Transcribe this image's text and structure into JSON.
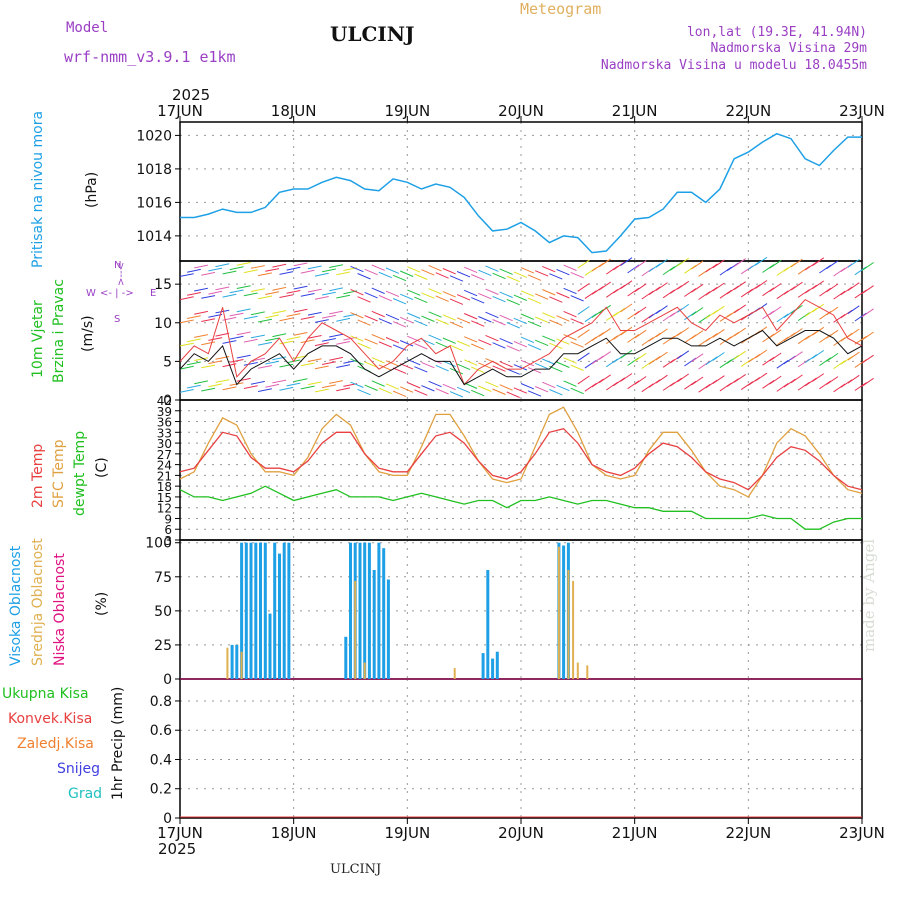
{
  "header": {
    "model_label": "Model",
    "model_name": "wrf-nmm_v3.9.1  e1km",
    "station": "ULCINJ",
    "meteogram": "Meteogram",
    "lonlat": "lon,lat (19.3E, 41.94N)",
    "elevation": "Nadmorska Visina 29m",
    "model_elevation": "Nadmorska Visina u modelu 18.0455m"
  },
  "footer": {
    "station": "ULCINJ",
    "made_by": "made by Angel"
  },
  "time_axis": {
    "year": "2025",
    "day_labels": [
      "17JUN",
      "18JUN",
      "19JUN",
      "20JUN",
      "21JUN",
      "22JUN",
      "23JUN"
    ]
  },
  "panels": {
    "pressure": {
      "title": "Pritisak na nivou mora",
      "unit": "(hPa)"
    },
    "wind": {
      "title1": "10m Vjetar",
      "title2": "Brzina i Pravac",
      "unit": "(m/s)",
      "compass_n": "N",
      "compass_s": "S",
      "compass_w": "W",
      "compass_e": "E",
      "compass_arrow_v": ">--<",
      "compass_arrow_h": "<- | ->"
    },
    "temperature": {
      "title1": "2m Temp",
      "title2": "SFC Temp",
      "title3": "dewpt Temp",
      "unit": "(C)"
    },
    "cloud": {
      "title1": "Visoka Oblacnost",
      "title2": "Srednja Oblacnost",
      "title3": "Niska Oblacnost",
      "unit": "(%)"
    },
    "precip": {
      "legend": [
        "Ukupna Kisa",
        "Konvek.Kisa",
        "Zaledj.Kisa",
        "Snijeg",
        "Grad"
      ],
      "unit": "1hr Precip (mm)"
    }
  },
  "colors": {
    "pressure_line": "#1ea0e6",
    "temp2m": "#e84040",
    "sfc_temp": "#e0a040",
    "dewpoint": "#20c020",
    "cloud_high": "#1ea0e6",
    "cloud_mid": "#e0b050",
    "cloud_low": "#e01080",
    "grid": "#999999",
    "purple": "#9a3fc4"
  },
  "chart_data": [
    {
      "type": "line",
      "name": "pressure",
      "ylim": [
        1012.5,
        1020.8
      ],
      "yticks": [
        1014,
        1016,
        1018,
        1020
      ],
      "x_hours": [
        0,
        3,
        6,
        9,
        12,
        15,
        18,
        21,
        24,
        27,
        30,
        33,
        36,
        39,
        42,
        45,
        48,
        51,
        54,
        57,
        60,
        63,
        66,
        69,
        72,
        75,
        78,
        81,
        84,
        87,
        90,
        93,
        96,
        99,
        102,
        105,
        108,
        111,
        114,
        117,
        120,
        123,
        126,
        129,
        132,
        135,
        138,
        141,
        144
      ],
      "series": [
        {
          "name": "",
          "values": [
            1015.1,
            1015.1,
            1015.3,
            1015.6,
            1015.4,
            1015.4,
            1015.7,
            1016.6,
            1016.8,
            1016.8,
            1017.2,
            1017.5,
            1017.3,
            1016.8,
            1016.7,
            1017.4,
            1017.2,
            1016.8,
            1017.1,
            1016.9,
            1016.3,
            1015.2,
            1014.3,
            1014.4,
            1014.8,
            1014.3,
            1013.6,
            1014.0,
            1013.9,
            1013.0,
            1013.1,
            1014.0,
            1015.0,
            1015.1,
            1015.6,
            1016.6,
            1016.6,
            1016.0,
            1016.8,
            1018.6,
            1019.0,
            1019.6,
            1020.1,
            1019.8,
            1018.6,
            1018.2,
            1019.1,
            1019.9,
            1019.9
          ]
        }
      ],
      "ylabel": "(hPa)"
    },
    {
      "type": "line",
      "name": "wind",
      "ylim": [
        0,
        18
      ],
      "yticks": [
        0,
        5,
        10,
        15
      ],
      "x_hours": [
        0,
        3,
        6,
        9,
        12,
        15,
        18,
        21,
        24,
        27,
        30,
        33,
        36,
        39,
        42,
        45,
        48,
        51,
        54,
        57,
        60,
        63,
        66,
        69,
        72,
        75,
        78,
        81,
        84,
        87,
        90,
        93,
        96,
        99,
        102,
        105,
        108,
        111,
        114,
        117,
        120,
        123,
        126,
        129,
        132,
        135,
        138,
        141,
        144
      ],
      "series": [
        {
          "name": "",
          "values": [
            4,
            6,
            5,
            7,
            2,
            4,
            5,
            6,
            4,
            6,
            7,
            7,
            6,
            4,
            3,
            4,
            5,
            6,
            5,
            5,
            2,
            3,
            4,
            3,
            3,
            4,
            4,
            6,
            6,
            7,
            8,
            6,
            6,
            7,
            8,
            8,
            7,
            7,
            8,
            7,
            8,
            9,
            7,
            8,
            9,
            9,
            8,
            6,
            7
          ]
        },
        {
          "name": "",
          "values": [
            5,
            7,
            6,
            12,
            3,
            5,
            6,
            8,
            5,
            8,
            10,
            9,
            8,
            6,
            4,
            5,
            7,
            8,
            6,
            7,
            2,
            4,
            5,
            4,
            4,
            5,
            6,
            8,
            9,
            10,
            12,
            9,
            9,
            10,
            11,
            12,
            10,
            9,
            11,
            10,
            11,
            12,
            9,
            11,
            13,
            12,
            11,
            8,
            7
          ]
        }
      ],
      "ylabel": "(m/s)"
    },
    {
      "type": "line",
      "name": "temperature",
      "ylim": [
        3,
        42
      ],
      "yticks": [
        3,
        6,
        9,
        12,
        15,
        18,
        21,
        24,
        27,
        30,
        33,
        36,
        39,
        42
      ],
      "x_hours": [
        0,
        3,
        6,
        9,
        12,
        15,
        18,
        21,
        24,
        27,
        30,
        33,
        36,
        39,
        42,
        45,
        48,
        51,
        54,
        57,
        60,
        63,
        66,
        69,
        72,
        75,
        78,
        81,
        84,
        87,
        90,
        93,
        96,
        99,
        102,
        105,
        108,
        111,
        114,
        117,
        120,
        123,
        126,
        129,
        132,
        135,
        138,
        141,
        144
      ],
      "series": [
        {
          "name": "",
          "values": [
            22,
            23,
            28,
            33,
            32,
            26,
            23,
            23,
            22,
            25,
            30,
            33,
            33,
            27,
            23,
            22,
            22,
            27,
            32,
            33,
            30,
            25,
            21,
            20,
            22,
            27,
            33,
            34,
            30,
            24,
            22,
            21,
            23,
            27,
            30,
            29,
            26,
            22,
            20,
            19,
            17,
            21,
            26,
            29,
            28,
            25,
            21,
            18,
            17
          ]
        },
        {
          "name": "",
          "values": [
            20,
            22,
            30,
            37,
            35,
            27,
            22,
            22,
            21,
            26,
            34,
            38,
            35,
            27,
            22,
            21,
            21,
            29,
            38,
            38,
            32,
            25,
            20,
            19,
            20,
            29,
            38,
            40,
            33,
            24,
            21,
            20,
            21,
            28,
            33,
            33,
            28,
            22,
            18,
            17,
            15,
            21,
            30,
            34,
            32,
            27,
            21,
            17,
            16
          ]
        },
        {
          "name": "",
          "values": [
            17,
            15,
            15,
            14,
            15,
            16,
            18,
            16,
            14,
            15,
            16,
            17,
            15,
            15,
            15,
            14,
            15,
            16,
            15,
            14,
            13,
            14,
            14,
            12,
            14,
            14,
            15,
            14,
            13,
            14,
            14,
            13,
            12,
            12,
            11,
            11,
            11,
            9,
            9,
            9,
            9,
            10,
            9,
            9,
            6,
            6,
            8,
            9,
            9
          ]
        }
      ],
      "ylabel": "(C)"
    },
    {
      "type": "bar",
      "name": "cloud",
      "ylim": [
        0,
        102
      ],
      "yticks": [
        0,
        25,
        50,
        75,
        100
      ],
      "series": [
        {
          "name": "",
          "bars": [
            [
              11,
              25
            ],
            [
              12,
              25
            ],
            [
              13,
              100
            ],
            [
              14,
              100
            ],
            [
              15,
              100
            ],
            [
              16,
              100
            ],
            [
              17,
              100
            ],
            [
              18,
              100
            ],
            [
              19,
              48
            ],
            [
              20,
              100
            ],
            [
              21,
              92
            ],
            [
              22,
              100
            ],
            [
              23,
              100
            ],
            [
              35,
              31
            ],
            [
              36,
              100
            ],
            [
              37,
              100
            ],
            [
              38,
              100
            ],
            [
              39,
              100
            ],
            [
              40,
              100
            ],
            [
              41,
              80
            ],
            [
              42,
              100
            ],
            [
              43,
              96
            ],
            [
              44,
              73
            ],
            [
              64,
              19
            ],
            [
              65,
              80
            ],
            [
              66,
              15
            ],
            [
              67,
              20
            ],
            [
              80,
              100
            ],
            [
              81,
              98
            ],
            [
              82,
              100
            ]
          ]
        },
        {
          "name": "",
          "bars": [
            [
              10,
              23
            ],
            [
              13,
              20
            ],
            [
              37,
              72
            ],
            [
              39,
              12
            ],
            [
              58,
              8
            ],
            [
              80,
              97
            ],
            [
              82,
              80
            ],
            [
              83,
              72
            ],
            [
              84,
              12
            ],
            [
              86,
              10
            ]
          ]
        },
        {
          "name": "",
          "bars": []
        }
      ],
      "ylabel": "(%)"
    },
    {
      "type": "bar",
      "name": "precip",
      "ylim": [
        0,
        0.95
      ],
      "yticks": [
        0,
        0.2,
        0.4,
        0.6,
        0.8
      ],
      "values": [],
      "ylabel": "1hr Precip (mm)"
    }
  ]
}
